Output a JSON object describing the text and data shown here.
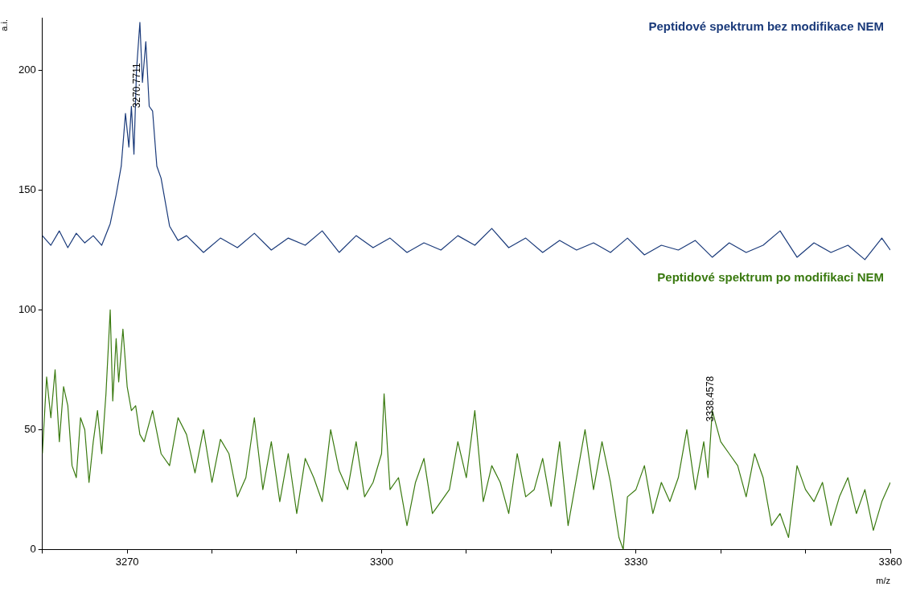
{
  "chart_data": {
    "type": "line",
    "xlabel": "m/z",
    "ylabel": "a.i.",
    "xlim": [
      3260,
      3360
    ],
    "ylim": [
      0,
      222
    ],
    "xticks": [
      {
        "value": 3260,
        "label": null
      },
      3270,
      {
        "value": 3280,
        "label": null
      },
      {
        "value": 3290,
        "label": null
      },
      3300,
      {
        "value": 3310,
        "label": null
      },
      {
        "value": 3320,
        "label": null
      },
      3330,
      {
        "value": 3340,
        "label": null
      },
      {
        "value": 3350,
        "label": null
      },
      3360
    ],
    "yticks": [
      0,
      50,
      100,
      150,
      200
    ],
    "grid": false,
    "legend": false,
    "marker": "none",
    "line_style": "solid",
    "series": [
      {
        "name": "Peptidové spektrum bez modifikace NEM",
        "color": "#1a3a7a",
        "x": [
          3260,
          3261,
          3262,
          3263,
          3264,
          3265,
          3266,
          3267,
          3268,
          3268.7,
          3269.3,
          3269.8,
          3270.2,
          3270.5,
          3270.8,
          3271.1,
          3271.5,
          3271.8,
          3272.2,
          3272.6,
          3273,
          3273.5,
          3274,
          3274.5,
          3275,
          3276,
          3277,
          3279,
          3281,
          3283,
          3285,
          3287,
          3289,
          3291,
          3293,
          3295,
          3297,
          3299,
          3301,
          3303,
          3305,
          3307,
          3309,
          3311,
          3313,
          3315,
          3317,
          3319,
          3321,
          3323,
          3325,
          3327,
          3329,
          3331,
          3333,
          3335,
          3337,
          3339,
          3341,
          3343,
          3345,
          3347,
          3349,
          3351,
          3353,
          3355,
          3357,
          3359,
          3360
        ],
        "values": [
          131,
          127,
          133,
          126,
          132,
          128,
          131,
          127,
          136,
          148,
          160,
          182,
          168,
          185,
          165,
          200,
          220,
          195,
          212,
          185,
          183,
          160,
          155,
          145,
          135,
          129,
          131,
          124,
          130,
          126,
          132,
          125,
          130,
          127,
          133,
          124,
          131,
          126,
          130,
          124,
          128,
          125,
          131,
          127,
          134,
          126,
          130,
          124,
          129,
          125,
          128,
          124,
          130,
          123,
          127,
          125,
          129,
          122,
          128,
          124,
          127,
          133,
          122,
          128,
          124,
          127,
          121,
          130,
          125
        ]
      },
      {
        "name": "Peptidové spektrum po modifikaci NEM",
        "color": "#3a7a10",
        "x": [
          3260,
          3260.5,
          3261,
          3261.5,
          3262,
          3262.5,
          3263,
          3263.5,
          3264,
          3264.5,
          3265,
          3265.5,
          3266,
          3266.5,
          3267,
          3267.5,
          3268,
          3268.3,
          3268.7,
          3269,
          3269.5,
          3270,
          3270.5,
          3271,
          3271.5,
          3272,
          3273,
          3274,
          3275,
          3276,
          3277,
          3278,
          3279,
          3280,
          3281,
          3282,
          3283,
          3284,
          3285,
          3286,
          3287,
          3288,
          3289,
          3290,
          3291,
          3292,
          3293,
          3294,
          3295,
          3296,
          3297,
          3298,
          3299,
          3300,
          3300.3,
          3301,
          3302,
          3303,
          3304,
          3305,
          3306,
          3307,
          3308,
          3309,
          3310,
          3311,
          3312,
          3313,
          3314,
          3315,
          3316,
          3317,
          3318,
          3319,
          3320,
          3321,
          3322,
          3323,
          3324,
          3325,
          3326,
          3327,
          3328,
          3328.5,
          3329,
          3330,
          3331,
          3332,
          3333,
          3334,
          3335,
          3336,
          3337,
          3338,
          3338.5,
          3339,
          3340,
          3341,
          3342,
          3343,
          3344,
          3345,
          3346,
          3347,
          3348,
          3349,
          3350,
          3351,
          3352,
          3353,
          3354,
          3355,
          3356,
          3357,
          3358,
          3359,
          3360
        ],
        "values": [
          40,
          72,
          55,
          75,
          45,
          68,
          60,
          35,
          30,
          55,
          50,
          28,
          45,
          58,
          40,
          65,
          100,
          62,
          88,
          70,
          92,
          68,
          58,
          60,
          48,
          45,
          58,
          40,
          35,
          55,
          48,
          32,
          50,
          28,
          46,
          40,
          22,
          30,
          55,
          25,
          45,
          20,
          40,
          15,
          38,
          30,
          20,
          50,
          33,
          25,
          45,
          22,
          28,
          40,
          65,
          25,
          30,
          10,
          28,
          38,
          15,
          20,
          25,
          45,
          30,
          58,
          20,
          35,
          28,
          15,
          40,
          22,
          25,
          38,
          18,
          45,
          10,
          30,
          50,
          25,
          45,
          28,
          5,
          0,
          22,
          25,
          35,
          15,
          28,
          20,
          30,
          50,
          25,
          45,
          30,
          58,
          45,
          40,
          35,
          22,
          40,
          30,
          10,
          15,
          5,
          35,
          25,
          20,
          28,
          10,
          22,
          30,
          15,
          25,
          8,
          20,
          28
        ]
      }
    ],
    "annotations": [
      {
        "text": "3270.7711",
        "x": 3270.7711,
        "y": 183
      },
      {
        "text": "3338.4578",
        "x": 3338.4578,
        "y": 52
      }
    ]
  }
}
